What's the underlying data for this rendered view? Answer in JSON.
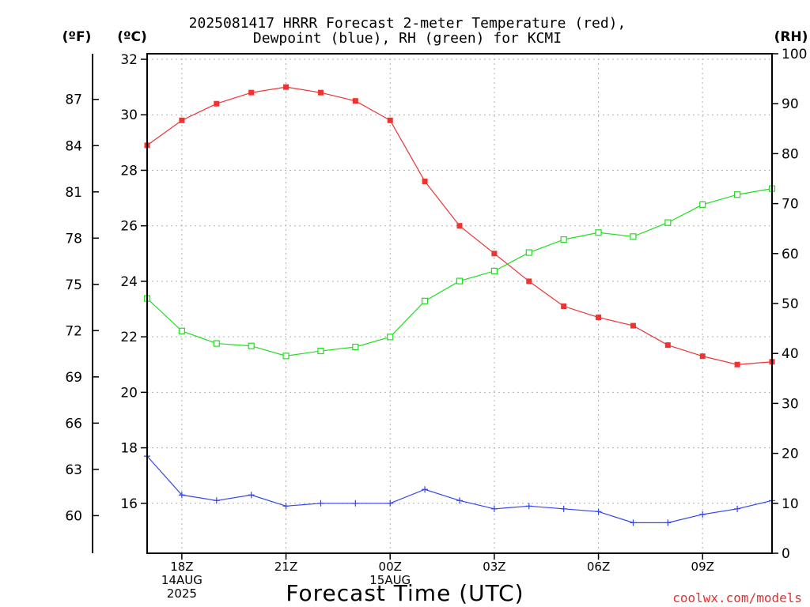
{
  "chart_data": {
    "type": "line",
    "title_line1": "2025081417 HRRR Forecast 2-meter Temperature (red),",
    "title_line2": "Dewpoint (blue), RH (green) for KCMI",
    "xlabel": "Forecast Time (UTC)",
    "credit": "coolwx.com/models",
    "units": {
      "fahrenheit": "(ºF)",
      "celsius": "(ºC)",
      "rh": "(RH)"
    },
    "x_hours_utc": [
      "17Z",
      "18Z",
      "19Z",
      "20Z",
      "21Z",
      "22Z",
      "23Z",
      "00Z",
      "01Z",
      "02Z",
      "03Z",
      "04Z",
      "05Z",
      "06Z",
      "07Z",
      "08Z",
      "09Z",
      "10Z",
      "11Z"
    ],
    "x_tick_labels": [
      {
        "hour_index": 1,
        "lines": [
          "18Z",
          "14AUG",
          "2025"
        ]
      },
      {
        "hour_index": 4,
        "lines": [
          "21Z"
        ]
      },
      {
        "hour_index": 7,
        "lines": [
          "00Z",
          "15AUG"
        ]
      },
      {
        "hour_index": 10,
        "lines": [
          "03Z"
        ]
      },
      {
        "hour_index": 13,
        "lines": [
          "06Z"
        ]
      },
      {
        "hour_index": 16,
        "lines": [
          "09Z"
        ]
      }
    ],
    "celsius_axis": {
      "range": [
        14.2,
        32.2
      ],
      "ticks": [
        16,
        18,
        20,
        22,
        24,
        26,
        28,
        30,
        32
      ]
    },
    "fahrenheit_axis": {
      "ticks": [
        60,
        63,
        66,
        69,
        72,
        75,
        78,
        81,
        84,
        87
      ]
    },
    "rh_axis": {
      "range": [
        0,
        100
      ],
      "ticks": [
        0,
        10,
        20,
        30,
        40,
        50,
        60,
        70,
        80,
        90,
        100
      ]
    },
    "grid": true,
    "series": [
      {
        "name": "Temperature",
        "color": "#ee3333",
        "axis": "celsius",
        "marker": "filled-square",
        "values": [
          28.9,
          29.8,
          30.4,
          30.8,
          31.0,
          30.8,
          30.5,
          29.8,
          27.6,
          26.0,
          25.0,
          24.0,
          23.1,
          22.7,
          22.4,
          21.7,
          21.3,
          21.0,
          21.1
        ]
      },
      {
        "name": "Dewpoint",
        "color": "#3344ee",
        "axis": "celsius",
        "marker": "plus",
        "values": [
          17.7,
          16.3,
          16.1,
          16.3,
          15.9,
          16.0,
          16.0,
          16.0,
          16.5,
          16.1,
          15.8,
          15.9,
          15.8,
          15.7,
          15.3,
          15.3,
          15.6,
          15.8,
          16.1
        ]
      },
      {
        "name": "RH",
        "color": "#22dd22",
        "axis": "rh",
        "marker": "open-square",
        "values": [
          51,
          44.5,
          42,
          41.5,
          39.5,
          40.5,
          41.3,
          43.3,
          50.5,
          54.5,
          56.5,
          60.2,
          62.8,
          64.2,
          63.4,
          66.2,
          69.8,
          71.8,
          73
        ]
      }
    ]
  }
}
